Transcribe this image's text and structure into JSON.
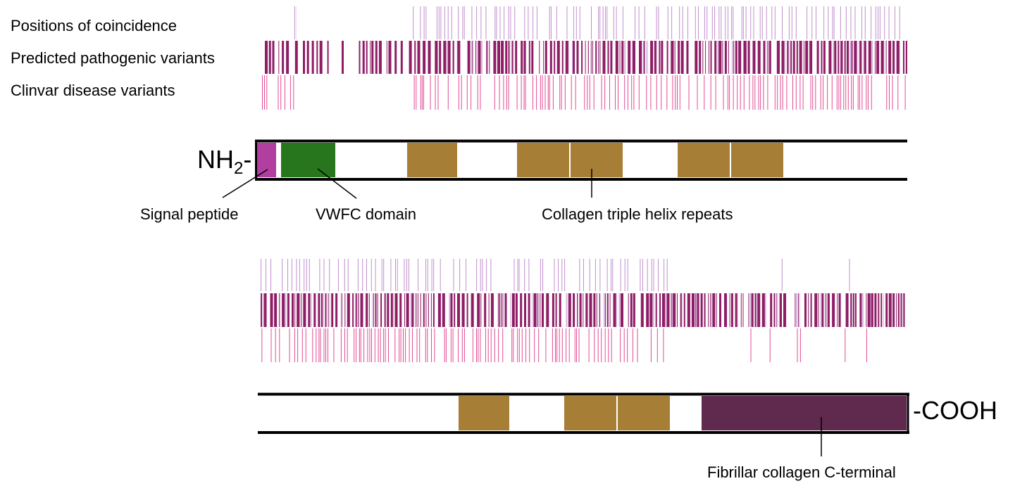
{
  "track_labels": {
    "coincidence": "Positions of coincidence",
    "predicted": "Predicted pathogenic variants",
    "clinvar": "Clinvar disease variants"
  },
  "termini": {
    "n_main": "NH",
    "n_sub": "2",
    "n_dash": "-",
    "c": "-COOH"
  },
  "domain_labels": {
    "signal_peptide": "Signal peptide",
    "vwfc": "VWFC domain",
    "collagen": "Collagen triple helix repeats",
    "c_terminal": "Fibrillar collagen C-terminal"
  },
  "colors": {
    "coincidence": "#b57cc4",
    "predicted": "#8e1d66",
    "clinvar": "#e0428f",
    "signal_peptide": "#b03fa0",
    "vwfc": "#27761e",
    "collagen": "#a77e36",
    "c_terminal": "#602a4f",
    "outline": "#000000"
  }
}
